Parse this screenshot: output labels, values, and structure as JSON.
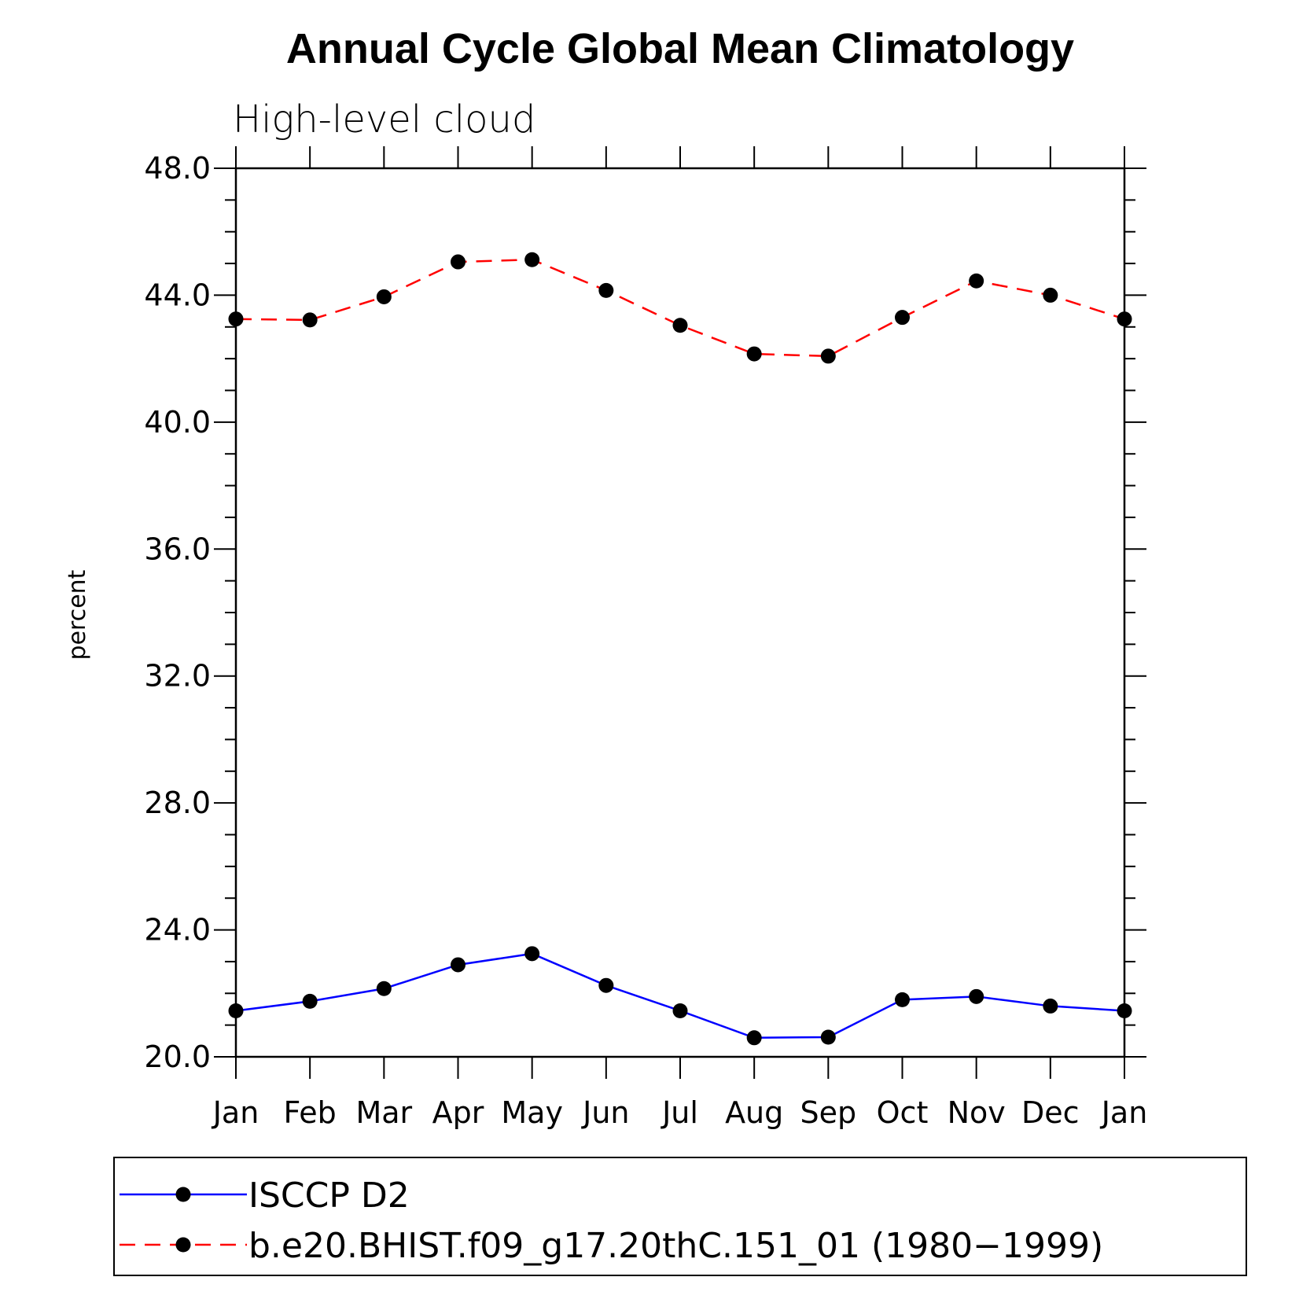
{
  "chart_data": {
    "type": "line",
    "title": "Annual Cycle Global Mean Climatology",
    "subtitle": "High-level cloud",
    "xlabel": "",
    "ylabel": "percent",
    "categories": [
      "Jan",
      "Feb",
      "Mar",
      "Apr",
      "May",
      "Jun",
      "Jul",
      "Aug",
      "Sep",
      "Oct",
      "Nov",
      "Dec",
      "Jan"
    ],
    "ylim": [
      20.0,
      48.0
    ],
    "yticks": [
      "20.0",
      "24.0",
      "28.0",
      "32.0",
      "36.0",
      "40.0",
      "44.0",
      "48.0"
    ],
    "grid": false,
    "legend_position": "bottom",
    "series": [
      {
        "name": "ISCCP D2",
        "color": "#0000ff",
        "dash": "solid",
        "marker": "filled-circle",
        "values": [
          21.45,
          21.75,
          22.15,
          22.9,
          23.25,
          22.25,
          21.45,
          20.6,
          20.62,
          21.8,
          21.9,
          21.6,
          21.45
        ]
      },
      {
        "name": "b.e20.BHIST.f09_g17.20thC.151_01 (1980−1999)",
        "color": "#ff0000",
        "dash": "dashed",
        "marker": "filled-circle",
        "values": [
          43.25,
          43.22,
          43.95,
          45.05,
          45.12,
          44.15,
          43.05,
          42.15,
          42.08,
          43.3,
          44.45,
          44.0,
          43.25
        ]
      }
    ]
  }
}
